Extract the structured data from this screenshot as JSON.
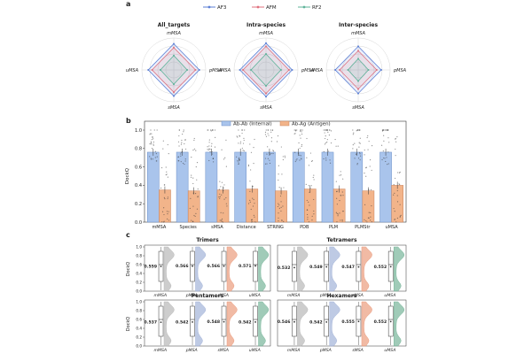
{
  "panel_letters": [
    "a",
    "b",
    "c"
  ],
  "colors": {
    "af3": "#5b7fd6",
    "afm": "#e0707e",
    "rf2": "#5fb39a",
    "bar_internal": "#a9c4ec",
    "bar_internal_edge": "#6b8fc8",
    "bar_antigen": "#f2b48a",
    "bar_antigen_edge": "#c9825a",
    "violins": [
      "#b8b8b8",
      "#a3b3d8",
      "#eb9c7e",
      "#78b59a"
    ]
  },
  "chart_data": [
    {
      "type": "radar",
      "panel": "a",
      "legend": [
        "AF3",
        "AFM",
        "RF2"
      ],
      "axes": [
        "mMSA",
        "pMSA",
        "sMSA",
        "uMSA"
      ],
      "subplots": [
        {
          "title": "All_targets",
          "series": [
            {
              "name": "AF3",
              "values": [
                0.82,
                0.8,
                0.82,
                0.8
              ]
            },
            {
              "name": "AFM",
              "values": [
                0.7,
                0.68,
                0.7,
                0.68
              ]
            },
            {
              "name": "RF2",
              "values": [
                0.45,
                0.42,
                0.45,
                0.42
              ]
            }
          ]
        },
        {
          "title": "Intra-species",
          "series": [
            {
              "name": "AF3",
              "values": [
                0.84,
                0.82,
                0.84,
                0.82
              ]
            },
            {
              "name": "AFM",
              "values": [
                0.74,
                0.72,
                0.74,
                0.72
              ]
            },
            {
              "name": "RF2",
              "values": [
                0.5,
                0.47,
                0.5,
                0.47
              ]
            }
          ]
        },
        {
          "title": "Inter-species",
          "series": [
            {
              "name": "AF3",
              "values": [
                0.74,
                0.72,
                0.74,
                0.72
              ]
            },
            {
              "name": "AFM",
              "values": [
                0.6,
                0.58,
                0.6,
                0.58
              ]
            },
            {
              "name": "RF2",
              "values": [
                0.35,
                0.32,
                0.35,
                0.32
              ]
            }
          ]
        }
      ]
    },
    {
      "type": "bar",
      "panel": "b",
      "categories": [
        "mMSA",
        "Species",
        "sMSA",
        "Distance",
        "STRING",
        "PDB",
        "PLM",
        "PLMStr",
        "uMSA"
      ],
      "series": [
        {
          "name": "Ab-Ab (Internal)",
          "values": [
            0.76,
            0.76,
            0.76,
            0.76,
            0.76,
            0.76,
            0.76,
            0.76,
            0.76
          ]
        },
        {
          "name": "Ab-Ag (Antigen)",
          "values": [
            0.35,
            0.34,
            0.35,
            0.36,
            0.34,
            0.36,
            0.36,
            0.34,
            0.4
          ]
        }
      ],
      "ylabel": "DockQ",
      "ylim": [
        0,
        1.0
      ],
      "yticks": [
        "0.0",
        "0.2",
        "0.4",
        "0.6",
        "0.8",
        "1.0"
      ],
      "legend_position": "top-center"
    },
    {
      "type": "violin-box",
      "panel": "c",
      "categories": [
        "mMSA",
        "pMSA",
        "sMSA",
        "uMSA"
      ],
      "ylabel": "DockQ",
      "ylim": [
        0,
        1.0
      ],
      "yticks": [
        "0.0",
        "0.2",
        "0.4",
        "0.6",
        "0.8",
        "1.0"
      ],
      "subplots": [
        {
          "title": "Trimers",
          "means": [
            0.559,
            0.566,
            0.566,
            0.571
          ],
          "labels": [
            "0.559",
            "0.566",
            "0.566",
            "0.571"
          ]
        },
        {
          "title": "Tetramers",
          "means": [
            0.532,
            0.549,
            0.547,
            0.552
          ],
          "labels": [
            "0.532",
            "0.549",
            "0.547",
            "0.552"
          ]
        },
        {
          "title": "Pentamers",
          "means": [
            0.537,
            0.542,
            0.548,
            0.542
          ],
          "labels": [
            "0.537",
            "0.542",
            "0.548",
            "0.542"
          ]
        },
        {
          "title": "Hexamers",
          "means": [
            0.546,
            0.542,
            0.555,
            0.552
          ],
          "labels": [
            "0.546",
            "0.542",
            "0.555",
            "0.552"
          ]
        }
      ]
    }
  ]
}
